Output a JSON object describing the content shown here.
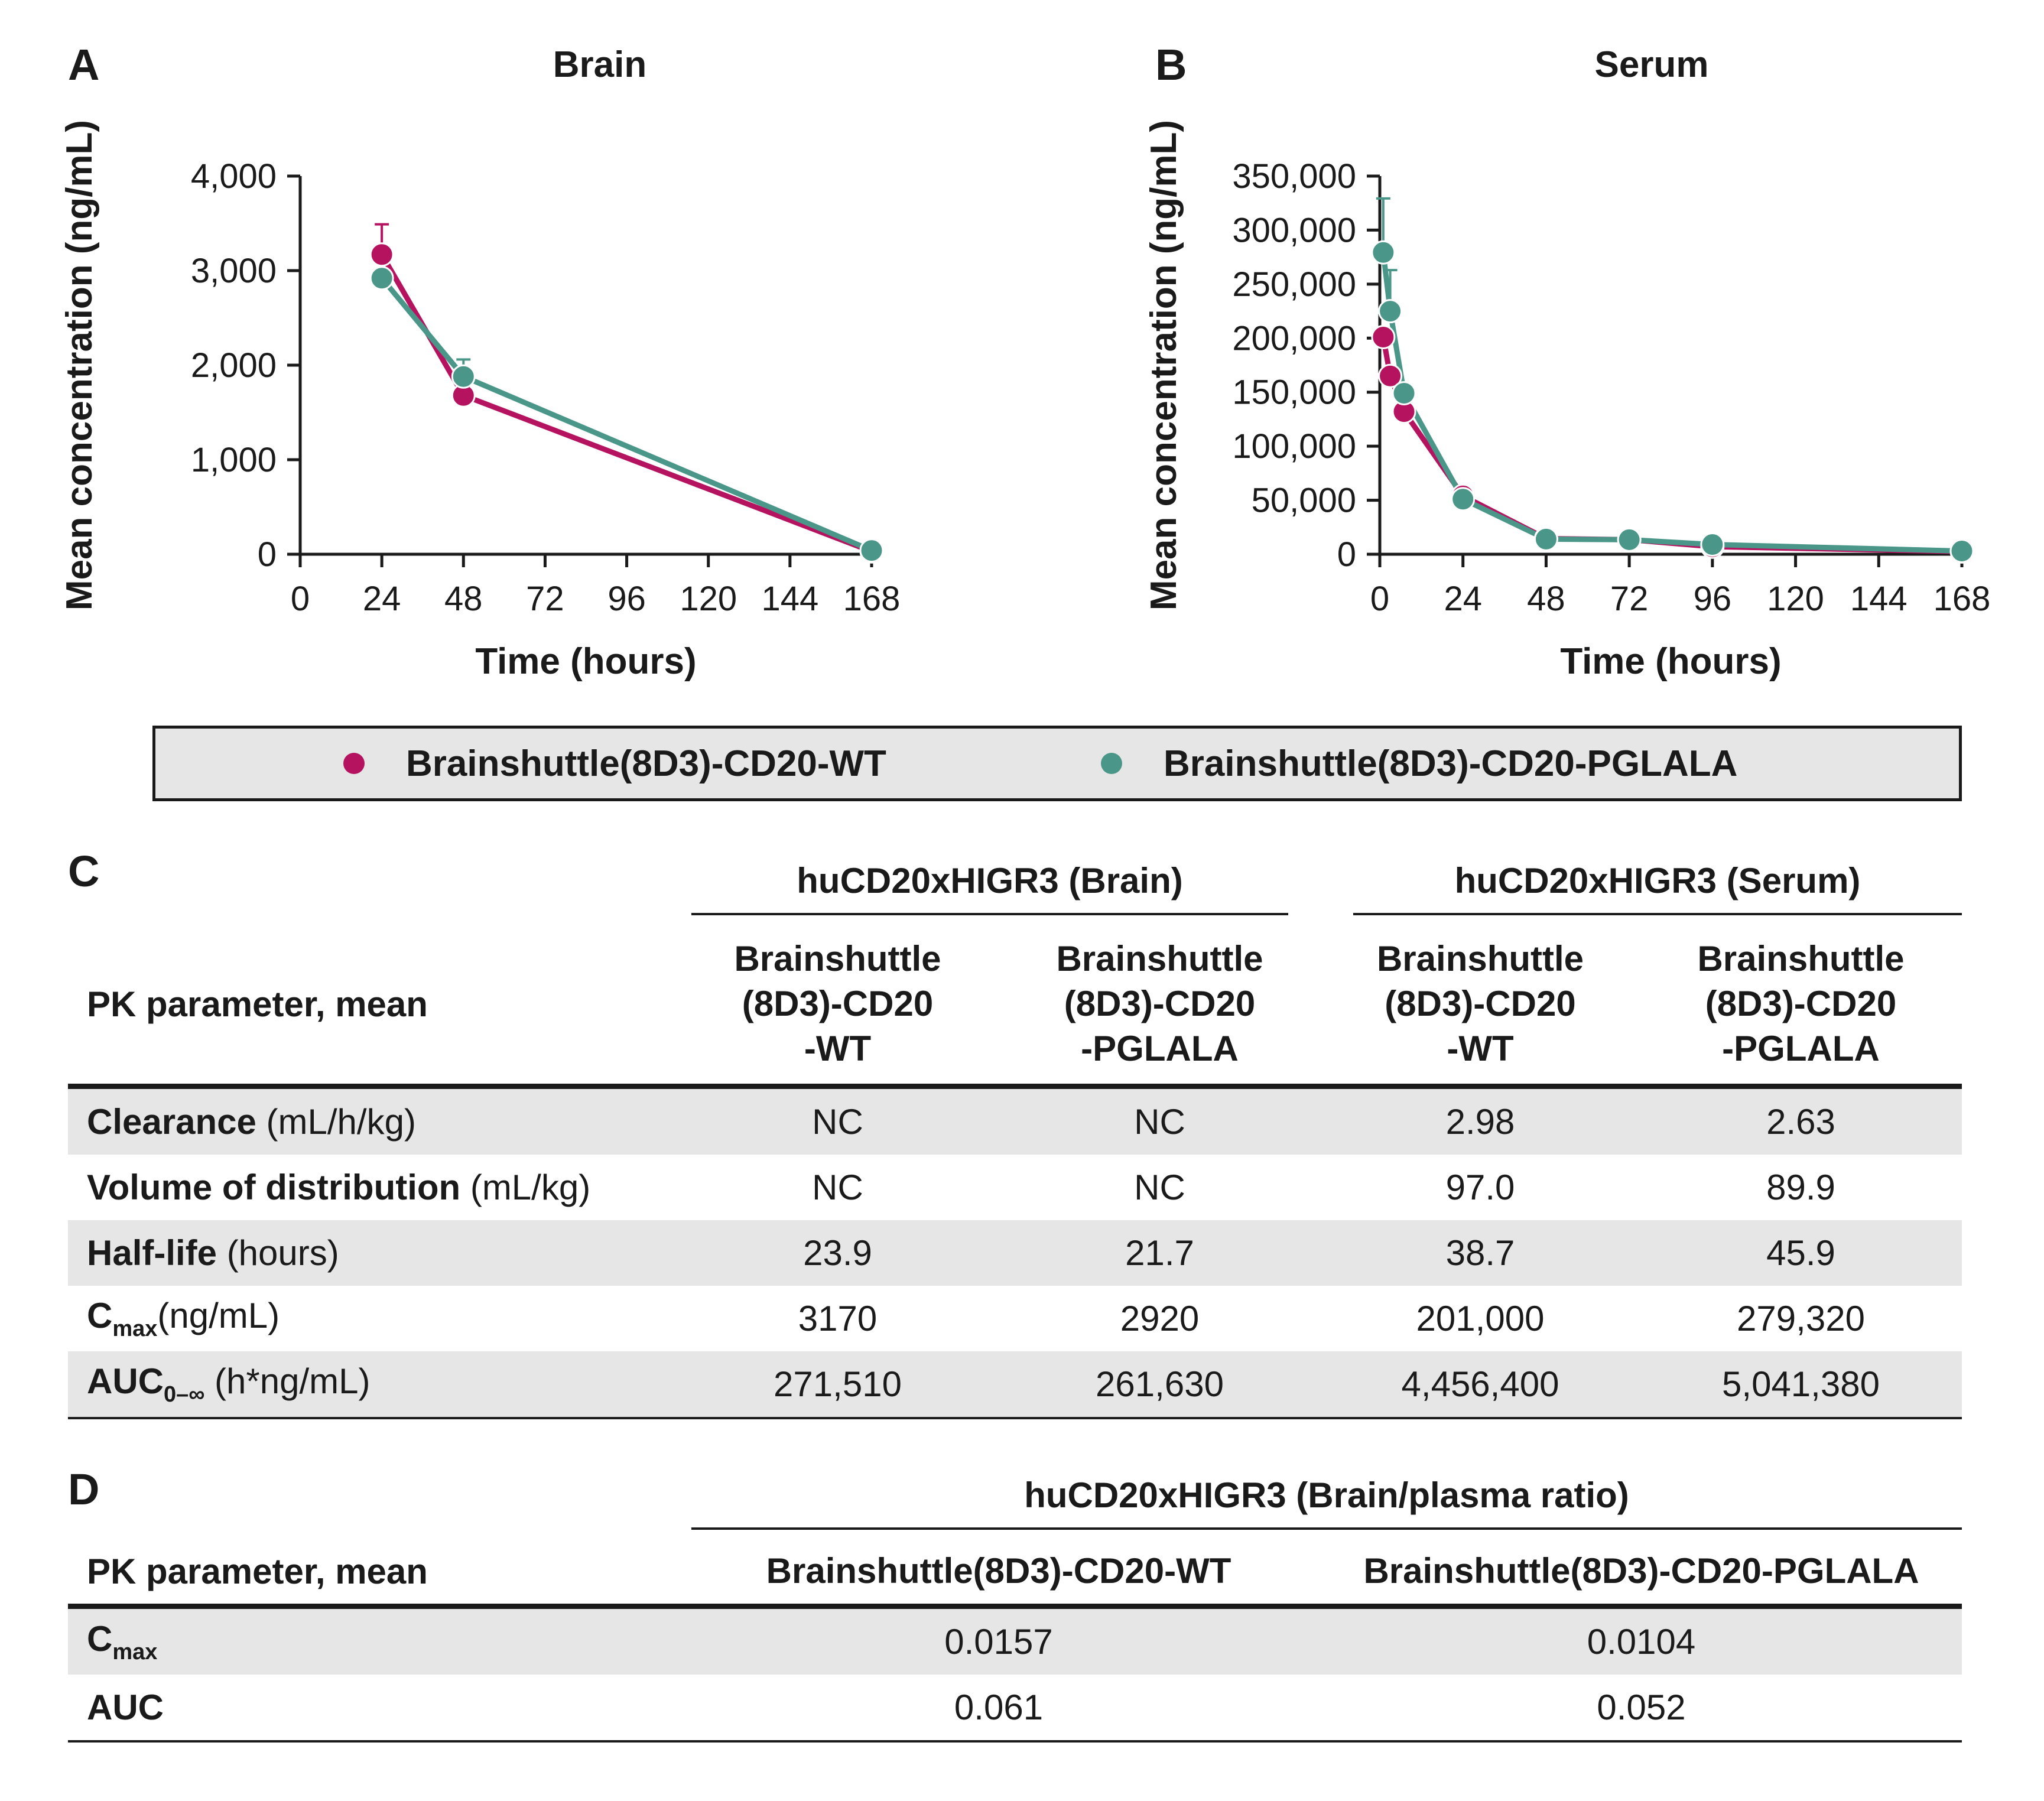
{
  "chart_data": [
    {
      "panel": "A",
      "type": "line",
      "title": "Brain",
      "xlabel": "Time (hours)",
      "ylabel": "Mean concentration (ng/mL)",
      "xlim": [
        0,
        168
      ],
      "ylim": [
        0,
        4000
      ],
      "xticks": [
        0,
        24,
        48,
        72,
        96,
        120,
        144,
        168
      ],
      "xtick_labels": [
        "0",
        "24",
        "48",
        "72",
        "96",
        "120",
        "144",
        "168"
      ],
      "yticks": [
        0,
        1000,
        2000,
        3000,
        4000
      ],
      "ytick_labels": [
        "0",
        "1,000",
        "2,000",
        "3,000",
        "4,000"
      ],
      "series": [
        {
          "name": "Brainshuttle(8D3)-CD20-WT",
          "color": "#b5135f",
          "x": [
            24,
            48,
            168
          ],
          "y": [
            3170,
            1680,
            30
          ],
          "err": [
            320,
            0,
            0
          ]
        },
        {
          "name": "Brainshuttle(8D3)-CD20-PGLALA",
          "color": "#4a978a",
          "x": [
            24,
            48,
            168
          ],
          "y": [
            2920,
            1880,
            40
          ],
          "err": [
            0,
            180,
            0
          ]
        }
      ]
    },
    {
      "panel": "B",
      "type": "line",
      "title": "Serum",
      "xlabel": "Time (hours)",
      "ylabel": "Mean concentration (ng/mL)",
      "xlim": [
        0,
        168
      ],
      "ylim": [
        0,
        350000
      ],
      "xticks": [
        0,
        24,
        48,
        72,
        96,
        120,
        144,
        168
      ],
      "xtick_labels": [
        "0",
        "24",
        "48",
        "72",
        "96",
        "120",
        "144",
        "168"
      ],
      "yticks": [
        0,
        50000,
        100000,
        150000,
        200000,
        250000,
        300000,
        350000
      ],
      "ytick_labels": [
        "0",
        "50,000",
        "100,000",
        "150,000",
        "200,000",
        "250,000",
        "300,000",
        "350,000"
      ],
      "series": [
        {
          "name": "Brainshuttle(8D3)-CD20-WT",
          "color": "#b5135f",
          "x": [
            1,
            3,
            7,
            24,
            48,
            72,
            96,
            168
          ],
          "y": [
            201000,
            165000,
            132000,
            54000,
            14500,
            13500,
            7000,
            2500
          ],
          "err": [
            0,
            0,
            0,
            8000,
            0,
            0,
            0,
            0
          ]
        },
        {
          "name": "Brainshuttle(8D3)-CD20-PGLALA",
          "color": "#4a978a",
          "x": [
            1,
            3,
            7,
            24,
            48,
            72,
            96,
            168
          ],
          "y": [
            279320,
            225000,
            149000,
            51000,
            14000,
            13500,
            9000,
            3000
          ],
          "err": [
            50000,
            38000,
            0,
            0,
            0,
            0,
            0,
            0
          ]
        }
      ]
    }
  ],
  "panels": {
    "a": "A",
    "b": "B",
    "c": "C",
    "d": "D"
  },
  "legend": {
    "wt": {
      "label": "Brainshuttle(8D3)-CD20-WT",
      "color": "#b5135f"
    },
    "pglala": {
      "label": "Brainshuttle(8D3)-CD20-PGLALA",
      "color": "#4a978a"
    }
  },
  "table_c": {
    "group_brain": "huCD20xHIGR3 (Brain)",
    "group_serum": "huCD20xHIGR3 (Serum)",
    "row_header": "PK parameter, mean",
    "col_wt": [
      "Brainshuttle",
      "(8D3)-CD20",
      "-WT"
    ],
    "col_pglala": [
      "Brainshuttle",
      "(8D3)-CD20",
      "-PGLALA"
    ],
    "rows": [
      {
        "name": "Clearance",
        "sub": "",
        "unit": " (mL/h/kg)",
        "values": [
          "NC",
          "NC",
          "2.98",
          "2.63"
        ]
      },
      {
        "name": "Volume of distribution",
        "sub": "",
        "unit": " (mL/kg)",
        "values": [
          "NC",
          "NC",
          "97.0",
          "89.9"
        ]
      },
      {
        "name": "Half-life",
        "sub": "",
        "unit": " (hours)",
        "values": [
          "23.9",
          "21.7",
          "38.7",
          "45.9"
        ]
      },
      {
        "name": "C",
        "sub": "max",
        "unit": "(ng/mL)",
        "values": [
          "3170",
          "2920",
          "201,000",
          "279,320"
        ]
      },
      {
        "name": "AUC",
        "sub": "0–∞",
        "unit": " (h*ng/mL)",
        "values": [
          "271,510",
          "261,630",
          "4,456,400",
          "5,041,380"
        ]
      }
    ]
  },
  "table_d": {
    "group": "huCD20xHIGR3 (Brain/plasma ratio)",
    "row_header": "PK parameter, mean",
    "col_wt": "Brainshuttle(8D3)-CD20-WT",
    "col_pglala": "Brainshuttle(8D3)-CD20-PGLALA",
    "rows": [
      {
        "name": "C",
        "sub": "max",
        "values": [
          "0.0157",
          "0.0104"
        ]
      },
      {
        "name": "AUC",
        "sub": "",
        "values": [
          "0.061",
          "0.052"
        ]
      }
    ]
  }
}
